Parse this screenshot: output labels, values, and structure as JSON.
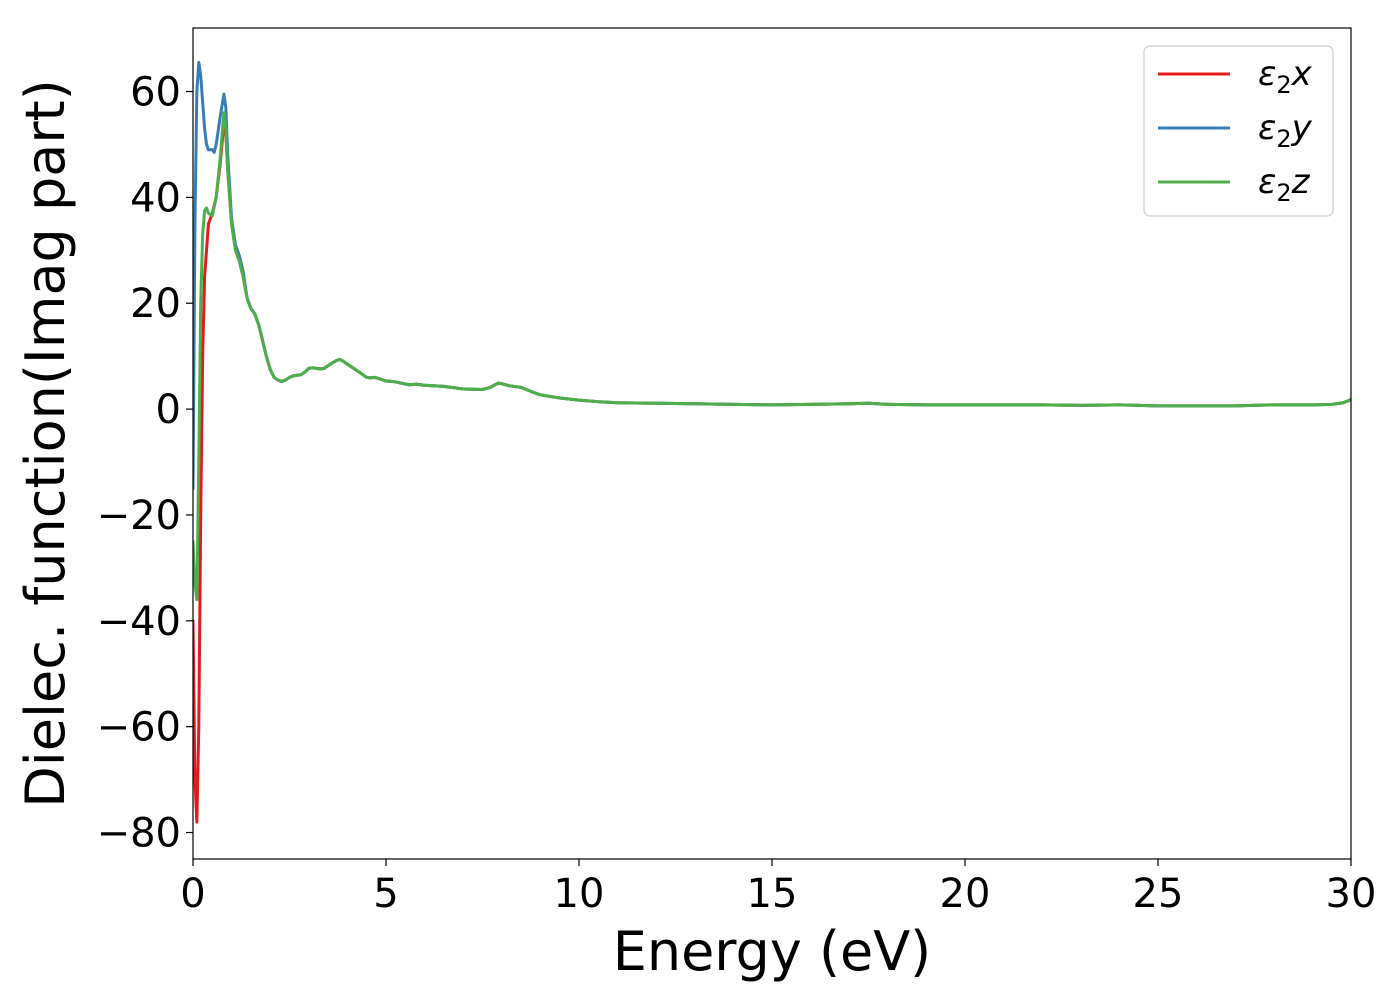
{
  "chart_data": {
    "type": "line",
    "title": "",
    "xlabel": "Energy (eV)",
    "ylabel": "Dielec. function(Imag part)",
    "xlim": [
      0,
      30
    ],
    "ylim": [
      -85,
      72
    ],
    "xticks": [
      0,
      5,
      10,
      15,
      20,
      25,
      30
    ],
    "yticks": [
      -80,
      -60,
      -40,
      -20,
      0,
      20,
      40,
      60
    ],
    "grid": false,
    "legend_position": "top-right",
    "series": [
      {
        "name": "ε₂x",
        "legend_main": "ε",
        "legend_sub": "2",
        "legend_suffix": "x",
        "color": "#e41a1c",
        "points": [
          [
            0,
            -40
          ],
          [
            0.05,
            -70
          ],
          [
            0.1,
            -78
          ],
          [
            0.15,
            -60
          ],
          [
            0.2,
            -20
          ],
          [
            0.25,
            10
          ],
          [
            0.3,
            25
          ],
          [
            0.4,
            35
          ],
          [
            0.5,
            37
          ],
          [
            0.6,
            40
          ],
          [
            0.7,
            46
          ],
          [
            0.8,
            54
          ],
          [
            0.85,
            52
          ],
          [
            0.9,
            45
          ],
          [
            1.0,
            35
          ],
          [
            1.1,
            30
          ],
          [
            1.2,
            28
          ],
          [
            1.3,
            25
          ],
          [
            1.4,
            21
          ],
          [
            1.5,
            19
          ],
          [
            1.6,
            18
          ],
          [
            1.7,
            16
          ],
          [
            1.8,
            13
          ],
          [
            1.9,
            10
          ],
          [
            2.0,
            7.5
          ],
          [
            2.1,
            6
          ],
          [
            2.2,
            5.5
          ],
          [
            2.3,
            5.2
          ],
          [
            2.4,
            5.5
          ],
          [
            2.5,
            6
          ],
          [
            2.6,
            6.3
          ],
          [
            2.7,
            6.4
          ],
          [
            2.8,
            6.5
          ],
          [
            2.9,
            7
          ],
          [
            3.0,
            7.7
          ],
          [
            3.1,
            7.8
          ],
          [
            3.2,
            7.7
          ],
          [
            3.3,
            7.6
          ],
          [
            3.4,
            7.7
          ],
          [
            3.5,
            8.2
          ],
          [
            3.6,
            8.7
          ],
          [
            3.7,
            9.1
          ],
          [
            3.8,
            9.4
          ],
          [
            3.9,
            9
          ],
          [
            4.0,
            8.5
          ],
          [
            4.1,
            8
          ],
          [
            4.2,
            7.5
          ],
          [
            4.3,
            7
          ],
          [
            4.4,
            6.5
          ],
          [
            4.5,
            6
          ],
          [
            4.6,
            5.9
          ],
          [
            4.7,
            6
          ],
          [
            4.8,
            5.8
          ],
          [
            5.0,
            5.3
          ],
          [
            5.2,
            5.2
          ],
          [
            5.4,
            4.9
          ],
          [
            5.6,
            4.6
          ],
          [
            5.8,
            4.7
          ],
          [
            6.0,
            4.5
          ],
          [
            6.5,
            4.3
          ],
          [
            7.0,
            3.8
          ],
          [
            7.5,
            3.7
          ],
          [
            7.7,
            4.1
          ],
          [
            7.9,
            4.9
          ],
          [
            8.0,
            4.8
          ],
          [
            8.2,
            4.4
          ],
          [
            8.5,
            4.1
          ],
          [
            8.8,
            3.2
          ],
          [
            9.0,
            2.7
          ],
          [
            9.5,
            2.1
          ],
          [
            10,
            1.7
          ],
          [
            10.5,
            1.4
          ],
          [
            11,
            1.2
          ],
          [
            12,
            1.1
          ],
          [
            13,
            1.0
          ],
          [
            14,
            0.9
          ],
          [
            15,
            0.8
          ],
          [
            16,
            0.9
          ],
          [
            17,
            1.0
          ],
          [
            17.5,
            1.1
          ],
          [
            18,
            0.9
          ],
          [
            19,
            0.8
          ],
          [
            20,
            0.8
          ],
          [
            21,
            0.8
          ],
          [
            22,
            0.8
          ],
          [
            23,
            0.7
          ],
          [
            24,
            0.8
          ],
          [
            25,
            0.6
          ],
          [
            26,
            0.6
          ],
          [
            27,
            0.6
          ],
          [
            28,
            0.8
          ],
          [
            29,
            0.8
          ],
          [
            29.5,
            0.9
          ],
          [
            29.8,
            1.2
          ],
          [
            30,
            1.8
          ]
        ]
      },
      {
        "name": "ε₂y",
        "legend_main": "ε",
        "legend_sub": "2",
        "legend_suffix": "y",
        "color": "#377eb8",
        "points": [
          [
            0,
            -15
          ],
          [
            0.05,
            35
          ],
          [
            0.1,
            60
          ],
          [
            0.15,
            65.5
          ],
          [
            0.2,
            63
          ],
          [
            0.25,
            58
          ],
          [
            0.3,
            53
          ],
          [
            0.35,
            50
          ],
          [
            0.4,
            49
          ],
          [
            0.5,
            49
          ],
          [
            0.55,
            48.5
          ],
          [
            0.6,
            50
          ],
          [
            0.7,
            55
          ],
          [
            0.8,
            59.5
          ],
          [
            0.85,
            57
          ],
          [
            0.9,
            48
          ],
          [
            1.0,
            36
          ],
          [
            1.1,
            31
          ],
          [
            1.2,
            29
          ],
          [
            1.3,
            26
          ],
          [
            1.4,
            21
          ],
          [
            1.5,
            19
          ],
          [
            1.6,
            18
          ],
          [
            1.7,
            16
          ],
          [
            1.8,
            13
          ],
          [
            1.9,
            10
          ],
          [
            2.0,
            7.5
          ],
          [
            2.1,
            6
          ],
          [
            2.2,
            5.5
          ],
          [
            2.3,
            5.2
          ],
          [
            2.4,
            5.5
          ],
          [
            2.5,
            6
          ],
          [
            2.6,
            6.3
          ],
          [
            2.7,
            6.4
          ],
          [
            2.8,
            6.5
          ],
          [
            2.9,
            7
          ],
          [
            3.0,
            7.7
          ],
          [
            3.1,
            7.8
          ],
          [
            3.2,
            7.7
          ],
          [
            3.3,
            7.6
          ],
          [
            3.4,
            7.7
          ],
          [
            3.5,
            8.2
          ],
          [
            3.6,
            8.7
          ],
          [
            3.7,
            9.1
          ],
          [
            3.8,
            9.4
          ],
          [
            3.9,
            9
          ],
          [
            4.0,
            8.5
          ],
          [
            4.1,
            8
          ],
          [
            4.2,
            7.5
          ],
          [
            4.3,
            7
          ],
          [
            4.4,
            6.5
          ],
          [
            4.5,
            6
          ],
          [
            4.6,
            5.9
          ],
          [
            4.7,
            6
          ],
          [
            4.8,
            5.8
          ],
          [
            5.0,
            5.3
          ],
          [
            5.2,
            5.2
          ],
          [
            5.4,
            4.9
          ],
          [
            5.6,
            4.6
          ],
          [
            5.8,
            4.7
          ],
          [
            6.0,
            4.5
          ],
          [
            6.5,
            4.3
          ],
          [
            7.0,
            3.8
          ],
          [
            7.5,
            3.7
          ],
          [
            7.7,
            4.1
          ],
          [
            7.9,
            4.9
          ],
          [
            8.0,
            4.8
          ],
          [
            8.2,
            4.4
          ],
          [
            8.5,
            4.1
          ],
          [
            8.8,
            3.2
          ],
          [
            9.0,
            2.7
          ],
          [
            9.5,
            2.1
          ],
          [
            10,
            1.7
          ],
          [
            10.5,
            1.4
          ],
          [
            11,
            1.2
          ],
          [
            12,
            1.1
          ],
          [
            13,
            1.0
          ],
          [
            14,
            0.9
          ],
          [
            15,
            0.8
          ],
          [
            16,
            0.9
          ],
          [
            17,
            1.0
          ],
          [
            17.5,
            1.1
          ],
          [
            18,
            0.9
          ],
          [
            19,
            0.8
          ],
          [
            20,
            0.8
          ],
          [
            21,
            0.8
          ],
          [
            22,
            0.8
          ],
          [
            23,
            0.7
          ],
          [
            24,
            0.8
          ],
          [
            25,
            0.6
          ],
          [
            26,
            0.6
          ],
          [
            27,
            0.6
          ],
          [
            28,
            0.8
          ],
          [
            29,
            0.8
          ],
          [
            29.5,
            0.9
          ],
          [
            29.8,
            1.2
          ],
          [
            30,
            1.8
          ]
        ]
      },
      {
        "name": "ε₂z",
        "legend_main": "ε",
        "legend_sub": "2",
        "legend_suffix": "z",
        "color": "#4daf4a",
        "points": [
          [
            0,
            -25
          ],
          [
            0.05,
            -33
          ],
          [
            0.1,
            -36
          ],
          [
            0.15,
            -10
          ],
          [
            0.2,
            20
          ],
          [
            0.25,
            33
          ],
          [
            0.3,
            37.5
          ],
          [
            0.35,
            38
          ],
          [
            0.4,
            37
          ],
          [
            0.5,
            36.5
          ],
          [
            0.6,
            40
          ],
          [
            0.7,
            47
          ],
          [
            0.8,
            56
          ],
          [
            0.85,
            53
          ],
          [
            0.9,
            45
          ],
          [
            1.0,
            35
          ],
          [
            1.1,
            30
          ],
          [
            1.2,
            28
          ],
          [
            1.3,
            25
          ],
          [
            1.4,
            21
          ],
          [
            1.5,
            19
          ],
          [
            1.6,
            18
          ],
          [
            1.7,
            16
          ],
          [
            1.8,
            13
          ],
          [
            1.9,
            10
          ],
          [
            2.0,
            7.5
          ],
          [
            2.1,
            6
          ],
          [
            2.2,
            5.5
          ],
          [
            2.3,
            5.2
          ],
          [
            2.4,
            5.5
          ],
          [
            2.5,
            6
          ],
          [
            2.6,
            6.3
          ],
          [
            2.7,
            6.4
          ],
          [
            2.8,
            6.5
          ],
          [
            2.9,
            7
          ],
          [
            3.0,
            7.7
          ],
          [
            3.1,
            7.8
          ],
          [
            3.2,
            7.7
          ],
          [
            3.3,
            7.6
          ],
          [
            3.4,
            7.7
          ],
          [
            3.5,
            8.2
          ],
          [
            3.6,
            8.7
          ],
          [
            3.7,
            9.1
          ],
          [
            3.8,
            9.4
          ],
          [
            3.9,
            9
          ],
          [
            4.0,
            8.5
          ],
          [
            4.1,
            8
          ],
          [
            4.2,
            7.5
          ],
          [
            4.3,
            7
          ],
          [
            4.4,
            6.5
          ],
          [
            4.5,
            6
          ],
          [
            4.6,
            5.9
          ],
          [
            4.7,
            6
          ],
          [
            4.8,
            5.8
          ],
          [
            5.0,
            5.3
          ],
          [
            5.2,
            5.2
          ],
          [
            5.4,
            4.9
          ],
          [
            5.6,
            4.6
          ],
          [
            5.8,
            4.7
          ],
          [
            6.0,
            4.5
          ],
          [
            6.5,
            4.3
          ],
          [
            7.0,
            3.8
          ],
          [
            7.5,
            3.7
          ],
          [
            7.7,
            4.1
          ],
          [
            7.9,
            4.9
          ],
          [
            8.0,
            4.8
          ],
          [
            8.2,
            4.4
          ],
          [
            8.5,
            4.1
          ],
          [
            8.8,
            3.2
          ],
          [
            9.0,
            2.7
          ],
          [
            9.5,
            2.1
          ],
          [
            10,
            1.7
          ],
          [
            10.5,
            1.4
          ],
          [
            11,
            1.2
          ],
          [
            12,
            1.1
          ],
          [
            13,
            1.0
          ],
          [
            14,
            0.9
          ],
          [
            15,
            0.8
          ],
          [
            16,
            0.9
          ],
          [
            17,
            1.0
          ],
          [
            17.5,
            1.1
          ],
          [
            18,
            0.9
          ],
          [
            19,
            0.8
          ],
          [
            20,
            0.8
          ],
          [
            21,
            0.8
          ],
          [
            22,
            0.8
          ],
          [
            23,
            0.7
          ],
          [
            24,
            0.8
          ],
          [
            25,
            0.6
          ],
          [
            26,
            0.6
          ],
          [
            27,
            0.6
          ],
          [
            28,
            0.8
          ],
          [
            29,
            0.8
          ],
          [
            29.5,
            0.9
          ],
          [
            29.8,
            1.2
          ],
          [
            30,
            1.8
          ]
        ]
      }
    ]
  }
}
